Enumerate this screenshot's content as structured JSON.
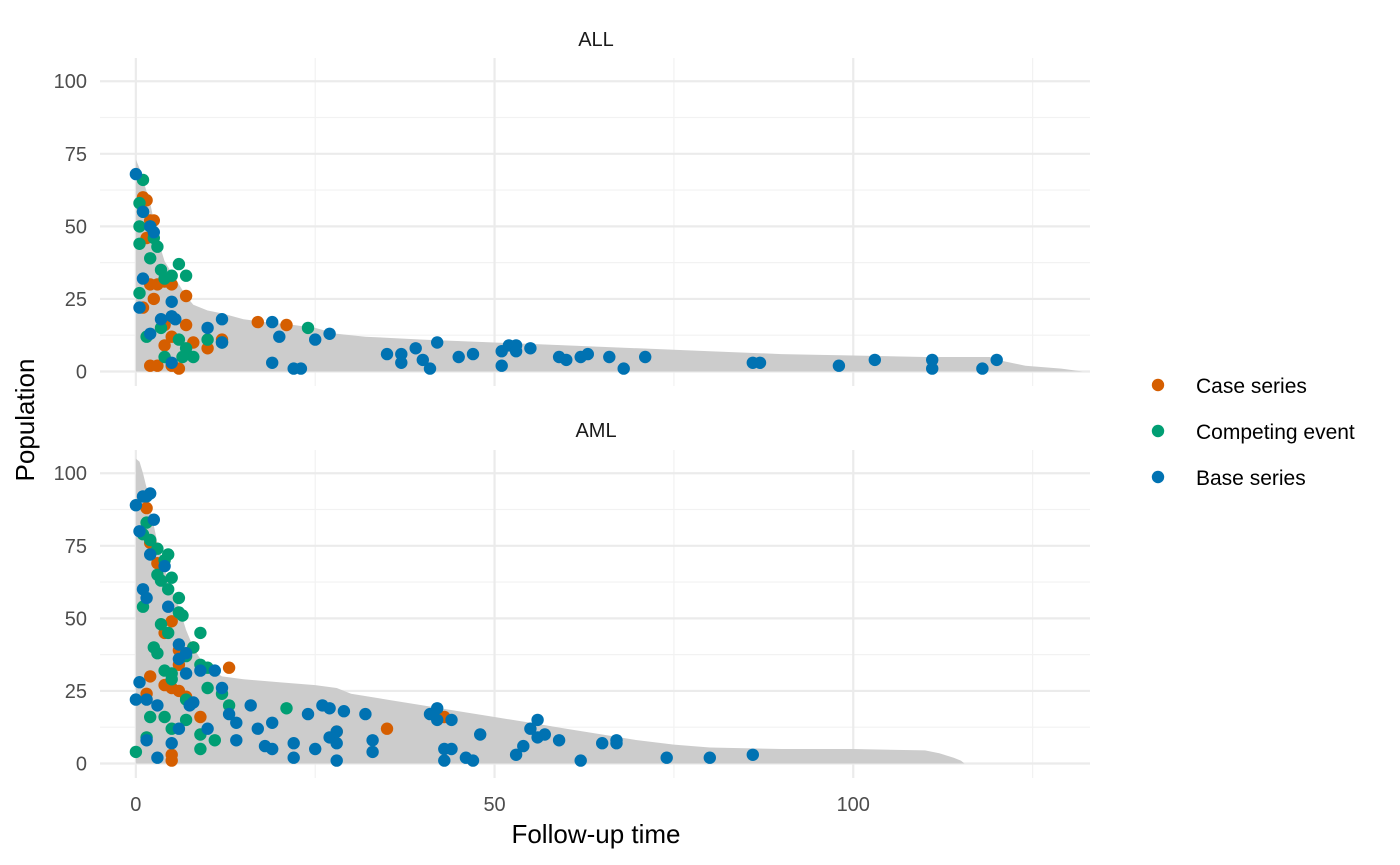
{
  "chart_data": {
    "type": "scatter",
    "xlabel": "Follow-up time",
    "ylabel": "Population",
    "xlim": [
      -5,
      133
    ],
    "ylim": [
      -5,
      108
    ],
    "x_ticks": [
      0,
      50,
      100
    ],
    "x_tick_labels": [
      "0",
      "50",
      "100"
    ],
    "y_ticks": [
      0,
      25,
      50,
      75,
      100
    ],
    "y_tick_labels": [
      "0",
      "25",
      "50",
      "75",
      "100"
    ],
    "grid": true,
    "legend_position": "right",
    "legend": [
      {
        "name": "Case series",
        "color": "#D55E00"
      },
      {
        "name": "Competing event",
        "color": "#009E73"
      },
      {
        "name": "Base series",
        "color": "#0072B2"
      }
    ],
    "area_color": "#cccccc",
    "panels": [
      {
        "title": "ALL",
        "area": [
          [
            0,
            73
          ],
          [
            0.5,
            70
          ],
          [
            1,
            66
          ],
          [
            1.5,
            62
          ],
          [
            2,
            58
          ],
          [
            2.5,
            52
          ],
          [
            3,
            46
          ],
          [
            3.5,
            42
          ],
          [
            4,
            38
          ],
          [
            5,
            34
          ],
          [
            6,
            30
          ],
          [
            7,
            26
          ],
          [
            8,
            23
          ],
          [
            10,
            21
          ],
          [
            12,
            20
          ],
          [
            15,
            18
          ],
          [
            18,
            17
          ],
          [
            22,
            16
          ],
          [
            25,
            15
          ],
          [
            28,
            13
          ],
          [
            32,
            12
          ],
          [
            40,
            11
          ],
          [
            50,
            10
          ],
          [
            60,
            9
          ],
          [
            70,
            8
          ],
          [
            80,
            7
          ],
          [
            90,
            6
          ],
          [
            100,
            5.5
          ],
          [
            110,
            5
          ],
          [
            119,
            5
          ],
          [
            121,
            3.5
          ],
          [
            124,
            2
          ],
          [
            129,
            1
          ],
          [
            132,
            0
          ]
        ],
        "case_series": [
          [
            1,
            60
          ],
          [
            1.5,
            59
          ],
          [
            2,
            52
          ],
          [
            2.5,
            52
          ],
          [
            1.5,
            46
          ],
          [
            2,
            30
          ],
          [
            3,
            30
          ],
          [
            4,
            31
          ],
          [
            5,
            30
          ],
          [
            2.5,
            25
          ],
          [
            1,
            22
          ],
          [
            7,
            26
          ],
          [
            4,
            16
          ],
          [
            5,
            12
          ],
          [
            7,
            16
          ],
          [
            8,
            10
          ],
          [
            10,
            8
          ],
          [
            12,
            11
          ],
          [
            17,
            17
          ],
          [
            21,
            16
          ],
          [
            5,
            2
          ],
          [
            2,
            2
          ],
          [
            3,
            2
          ],
          [
            6,
            1
          ],
          [
            4,
            9
          ]
        ],
        "competing_event": [
          [
            1,
            66
          ],
          [
            0.5,
            58
          ],
          [
            0.5,
            50
          ],
          [
            0.5,
            44
          ],
          [
            1,
            55
          ],
          [
            2,
            50
          ],
          [
            2.5,
            46
          ],
          [
            2,
            39
          ],
          [
            3,
            43
          ],
          [
            3.5,
            35
          ],
          [
            4,
            32
          ],
          [
            5,
            33
          ],
          [
            6,
            37
          ],
          [
            7,
            33
          ],
          [
            0.5,
            27
          ],
          [
            1.5,
            12
          ],
          [
            3.5,
            15
          ],
          [
            4,
            5
          ],
          [
            6,
            11
          ],
          [
            7,
            8
          ],
          [
            8,
            5
          ],
          [
            10,
            11
          ],
          [
            12,
            10
          ],
          [
            24,
            15
          ],
          [
            6.5,
            5
          ]
        ],
        "base_series": [
          [
            0,
            68
          ],
          [
            1,
            55
          ],
          [
            2,
            50
          ],
          [
            2.5,
            48
          ],
          [
            1,
            32
          ],
          [
            0.5,
            22
          ],
          [
            2,
            13
          ],
          [
            3.5,
            18
          ],
          [
            5,
            24
          ],
          [
            5,
            19
          ],
          [
            5.5,
            18
          ],
          [
            10,
            15
          ],
          [
            12,
            18
          ],
          [
            12,
            10
          ],
          [
            19,
            17
          ],
          [
            20,
            12
          ],
          [
            25,
            11
          ],
          [
            27,
            13
          ],
          [
            19,
            3
          ],
          [
            22,
            1
          ],
          [
            23,
            1
          ],
          [
            5,
            3
          ],
          [
            35,
            6
          ],
          [
            37,
            6
          ],
          [
            37,
            3
          ],
          [
            39,
            8
          ],
          [
            40,
            4
          ],
          [
            41,
            1
          ],
          [
            42,
            10
          ],
          [
            45,
            5
          ],
          [
            47,
            6
          ],
          [
            51,
            7
          ],
          [
            52,
            9
          ],
          [
            53,
            9
          ],
          [
            53,
            7
          ],
          [
            55,
            8
          ],
          [
            51,
            2
          ],
          [
            59,
            5
          ],
          [
            60,
            4
          ],
          [
            62,
            5
          ],
          [
            63,
            6
          ],
          [
            66,
            5
          ],
          [
            68,
            1
          ],
          [
            71,
            5
          ],
          [
            86,
            3
          ],
          [
            87,
            3
          ],
          [
            98,
            2
          ],
          [
            103,
            4
          ],
          [
            111,
            4
          ],
          [
            111,
            1
          ],
          [
            118,
            1
          ],
          [
            120,
            4
          ]
        ]
      },
      {
        "title": "AML",
        "area": [
          [
            0,
            105
          ],
          [
            0.5,
            104
          ],
          [
            1,
            100
          ],
          [
            1.5,
            95
          ],
          [
            2,
            88
          ],
          [
            2.5,
            82
          ],
          [
            3,
            76
          ],
          [
            3.5,
            72
          ],
          [
            4,
            67
          ],
          [
            5,
            60
          ],
          [
            6,
            54
          ],
          [
            7,
            46
          ],
          [
            8,
            40
          ],
          [
            9,
            36
          ],
          [
            10,
            33
          ],
          [
            12,
            30
          ],
          [
            15,
            29
          ],
          [
            20,
            28
          ],
          [
            25,
            27
          ],
          [
            28,
            26
          ],
          [
            30,
            24
          ],
          [
            35,
            22
          ],
          [
            40,
            20
          ],
          [
            45,
            18
          ],
          [
            50,
            16
          ],
          [
            55,
            14
          ],
          [
            60,
            12
          ],
          [
            65,
            10
          ],
          [
            70,
            8
          ],
          [
            75,
            6.5
          ],
          [
            80,
            5.5
          ],
          [
            90,
            5
          ],
          [
            100,
            5
          ],
          [
            110,
            4.5
          ],
          [
            112,
            3.5
          ],
          [
            114,
            2
          ],
          [
            115,
            1
          ],
          [
            115.5,
            0
          ]
        ],
        "case_series": [
          [
            1.5,
            88
          ],
          [
            2,
            76
          ],
          [
            3,
            69
          ],
          [
            5,
            49
          ],
          [
            6,
            39
          ],
          [
            6,
            34
          ],
          [
            4,
            27
          ],
          [
            5,
            26
          ],
          [
            6,
            25
          ],
          [
            7,
            23
          ],
          [
            1.5,
            24
          ],
          [
            2,
            30
          ],
          [
            13,
            33
          ],
          [
            9,
            16
          ],
          [
            28,
            11
          ],
          [
            35,
            12
          ],
          [
            43,
            16
          ],
          [
            5,
            3
          ],
          [
            5,
            1
          ],
          [
            4,
            45
          ],
          [
            8,
            40
          ]
        ],
        "competing_event": [
          [
            1.5,
            83
          ],
          [
            1,
            79
          ],
          [
            2,
            77
          ],
          [
            3,
            74
          ],
          [
            4,
            70
          ],
          [
            4.5,
            72
          ],
          [
            3,
            65
          ],
          [
            3.5,
            63
          ],
          [
            5,
            64
          ],
          [
            4.5,
            60
          ],
          [
            6,
            57
          ],
          [
            6.5,
            51
          ],
          [
            6,
            52
          ],
          [
            3.5,
            48
          ],
          [
            4.5,
            45
          ],
          [
            3,
            38
          ],
          [
            2.5,
            40
          ],
          [
            7,
            37
          ],
          [
            9,
            45
          ],
          [
            8,
            40
          ],
          [
            9,
            34
          ],
          [
            10,
            33
          ],
          [
            4,
            32
          ],
          [
            5,
            31
          ],
          [
            5,
            29
          ],
          [
            10,
            26
          ],
          [
            12,
            24
          ],
          [
            13,
            20
          ],
          [
            21,
            19
          ],
          [
            7,
            22
          ],
          [
            7,
            15
          ],
          [
            4,
            16
          ],
          [
            2,
            16
          ],
          [
            1.5,
            9
          ],
          [
            0,
            4
          ],
          [
            5,
            12
          ],
          [
            9,
            10
          ],
          [
            9,
            5
          ],
          [
            11,
            8
          ],
          [
            1,
            54
          ]
        ],
        "base_series": [
          [
            0,
            89
          ],
          [
            0.5,
            80
          ],
          [
            1,
            92
          ],
          [
            1.5,
            92
          ],
          [
            2,
            93
          ],
          [
            2.5,
            84
          ],
          [
            2,
            72
          ],
          [
            4,
            68
          ],
          [
            1,
            60
          ],
          [
            1.5,
            57
          ],
          [
            4.5,
            54
          ],
          [
            6,
            41
          ],
          [
            6,
            36
          ],
          [
            7,
            38
          ],
          [
            7,
            31
          ],
          [
            9,
            32
          ],
          [
            11,
            32
          ],
          [
            12,
            26
          ],
          [
            13,
            17
          ],
          [
            14,
            14
          ],
          [
            14,
            8
          ],
          [
            16,
            20
          ],
          [
            17,
            12
          ],
          [
            18,
            6
          ],
          [
            19,
            14
          ],
          [
            19,
            5
          ],
          [
            22,
            7
          ],
          [
            22,
            2
          ],
          [
            24,
            17
          ],
          [
            25,
            5
          ],
          [
            26,
            20
          ],
          [
            27,
            19
          ],
          [
            27,
            9
          ],
          [
            28,
            7
          ],
          [
            28,
            11
          ],
          [
            29,
            18
          ],
          [
            28,
            1
          ],
          [
            32,
            17
          ],
          [
            33,
            8
          ],
          [
            33,
            4
          ],
          [
            41,
            17
          ],
          [
            42,
            19
          ],
          [
            42,
            15
          ],
          [
            43,
            5
          ],
          [
            43,
            1
          ],
          [
            44,
            5
          ],
          [
            44,
            15
          ],
          [
            46,
            2
          ],
          [
            47,
            1
          ],
          [
            48,
            10
          ],
          [
            53,
            3
          ],
          [
            54,
            6
          ],
          [
            55,
            12
          ],
          [
            56,
            9
          ],
          [
            56,
            15
          ],
          [
            57,
            10
          ],
          [
            59,
            8
          ],
          [
            62,
            1
          ],
          [
            65,
            7
          ],
          [
            67,
            8
          ],
          [
            67,
            7
          ],
          [
            74,
            2
          ],
          [
            80,
            2
          ],
          [
            86,
            3
          ],
          [
            0.5,
            28
          ],
          [
            0,
            22
          ],
          [
            1.5,
            22
          ],
          [
            3,
            20
          ],
          [
            1.5,
            8
          ],
          [
            3,
            2
          ],
          [
            5,
            7
          ],
          [
            6,
            12
          ],
          [
            7.5,
            20
          ],
          [
            8,
            21
          ],
          [
            10,
            12
          ]
        ]
      }
    ]
  }
}
